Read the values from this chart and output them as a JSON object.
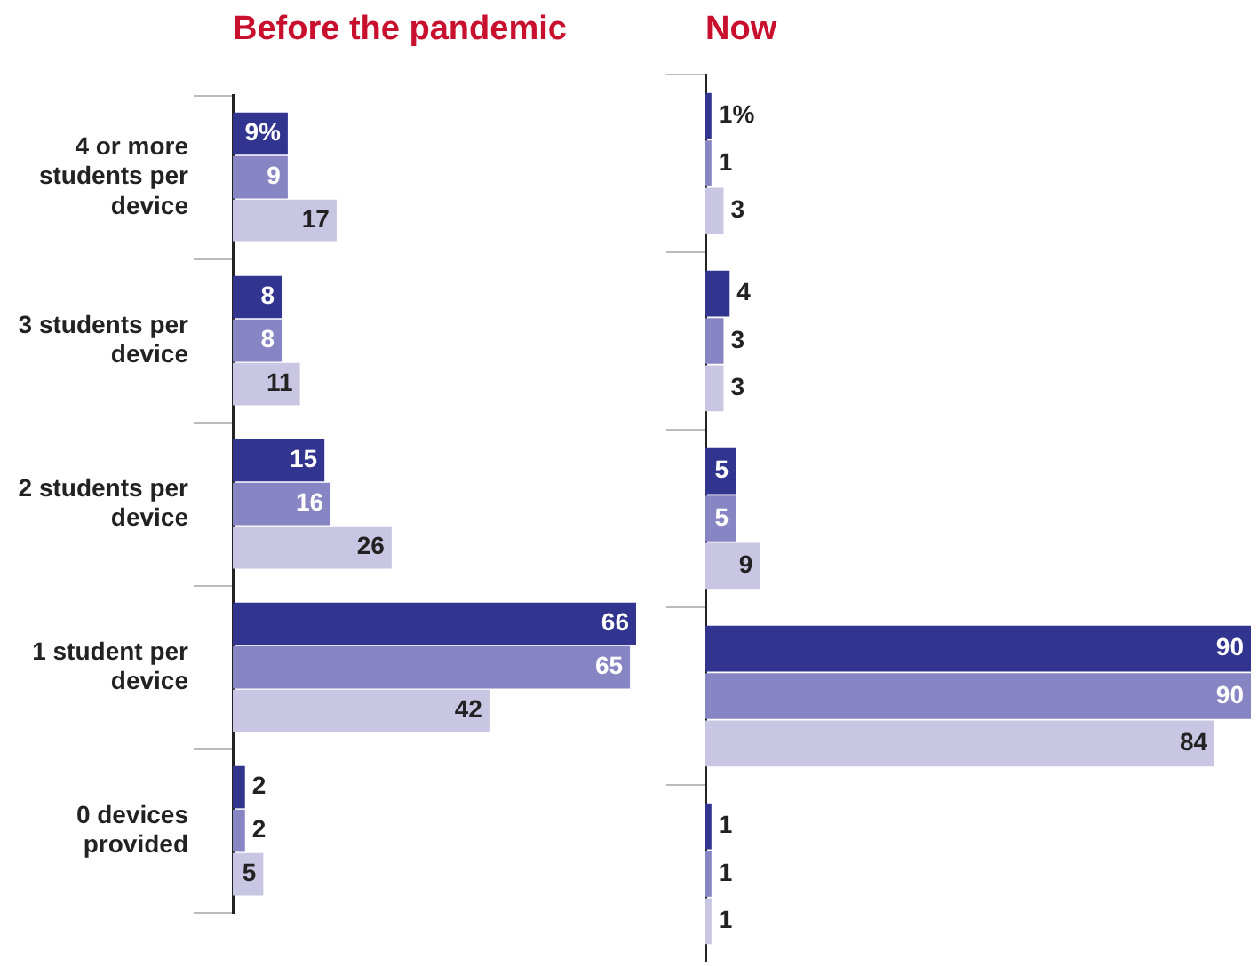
{
  "chart_data": [
    {
      "type": "bar",
      "orientation": "horizontal",
      "title": "Before the pandemic",
      "categories": [
        "4 or more students per device",
        "3 students per device",
        "2 students per device",
        "1 student per device",
        "0 devices provided"
      ],
      "xlim": [
        0,
        66
      ],
      "tick_labels": "y",
      "series": [
        {
          "color": "#32358f",
          "values": [
            9,
            8,
            15,
            66,
            2
          ],
          "value_labels": [
            "9%",
            "8",
            "15",
            "66",
            "2"
          ]
        },
        {
          "color": "#8785c3",
          "values": [
            9,
            8,
            16,
            65,
            2
          ],
          "value_labels": [
            "9",
            "8",
            "16",
            "65",
            "2"
          ]
        },
        {
          "color": "#c9c6e3",
          "values": [
            17,
            11,
            26,
            42,
            5
          ],
          "value_labels": [
            "17",
            "11",
            "26",
            "42",
            "5"
          ]
        }
      ]
    },
    {
      "type": "bar",
      "orientation": "horizontal",
      "title": "Now",
      "categories": [
        null,
        null,
        null,
        null,
        null
      ],
      "xlim": [
        0,
        90
      ],
      "tick_labels": false,
      "series": [
        {
          "color": "#32358f",
          "values": [
            1,
            4,
            5,
            90,
            1
          ],
          "value_labels": [
            "1%",
            "4",
            "5",
            "90",
            "1"
          ]
        },
        {
          "color": "#8785c3",
          "values": [
            1,
            3,
            5,
            90,
            1
          ],
          "value_labels": [
            "1",
            "3",
            "5",
            "90",
            "1"
          ]
        },
        {
          "color": "#c9c6e3",
          "values": [
            3,
            3,
            9,
            84,
            1
          ],
          "value_labels": [
            "3",
            "3",
            "9",
            "84",
            "1"
          ]
        }
      ]
    }
  ]
}
